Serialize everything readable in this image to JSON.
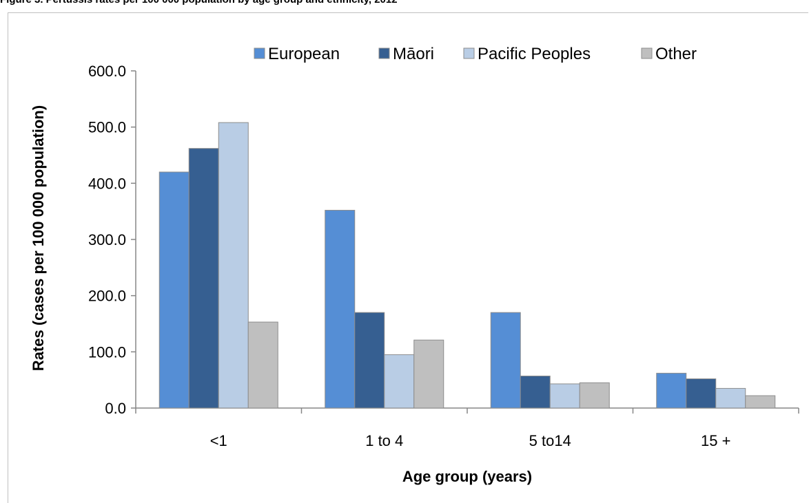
{
  "caption": "Figure 3. Pertussis rates per 100 000 population by age group and ethnicity, 2012",
  "chart_data": {
    "type": "bar",
    "title": "",
    "xlabel": "Age group (years)",
    "ylabel": "Rates (cases per 100 000 population)",
    "ylim": [
      0,
      600
    ],
    "yticks": [
      "0.0",
      "100.0",
      "200.0",
      "300.0",
      "400.0",
      "500.0",
      "600.0"
    ],
    "categories": [
      "<1",
      "1 to 4",
      "5 to14",
      "15 +"
    ],
    "legend_position": "top",
    "series": [
      {
        "name": "European",
        "color": "#558ed5",
        "values": [
          420,
          352,
          170,
          62
        ]
      },
      {
        "name": "Māori",
        "color": "#365f91",
        "values": [
          462,
          170,
          57,
          52
        ]
      },
      {
        "name": "Pacific Peoples",
        "color": "#b9cde5",
        "values": [
          508,
          95,
          43,
          35
        ]
      },
      {
        "name": "Other",
        "color": "#bfbfbf",
        "values": [
          153,
          121,
          45,
          22
        ]
      }
    ],
    "grid": false
  }
}
